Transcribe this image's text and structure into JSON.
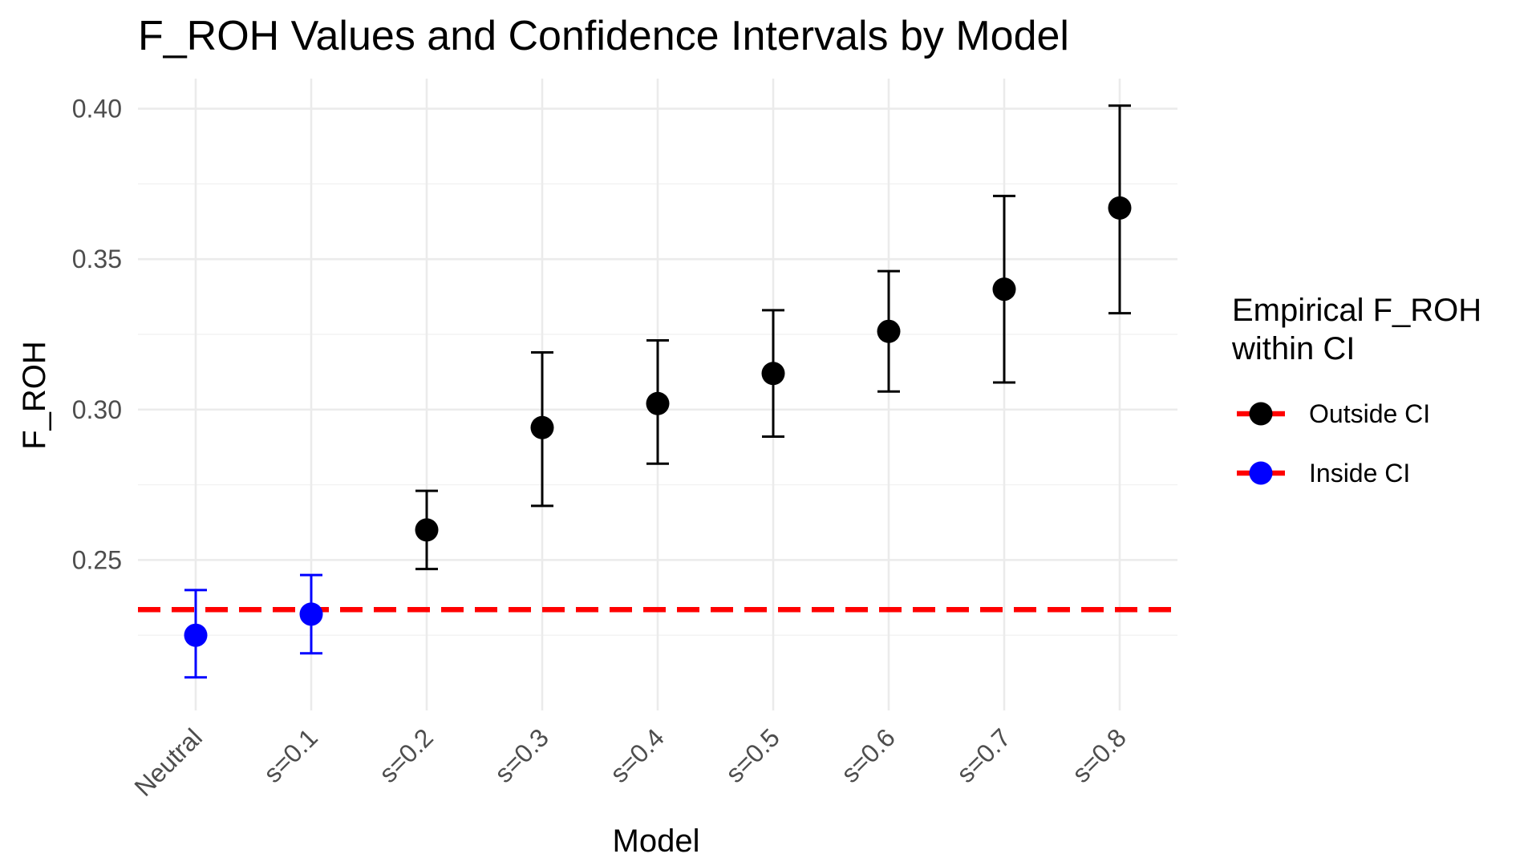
{
  "chart_data": {
    "type": "scatter",
    "title": "F_ROH Values and Confidence Intervals by Model",
    "xlabel": "Model",
    "ylabel": "F_ROH",
    "categories": [
      "Neutral",
      "s=0.1",
      "s=0.2",
      "s=0.3",
      "s=0.4",
      "s=0.5",
      "s=0.6",
      "s=0.7",
      "s=0.8"
    ],
    "values": [
      0.225,
      0.232,
      0.26,
      0.294,
      0.302,
      0.312,
      0.326,
      0.34,
      0.367
    ],
    "ci_lower": [
      0.211,
      0.219,
      0.247,
      0.268,
      0.282,
      0.291,
      0.306,
      0.309,
      0.332
    ],
    "ci_upper": [
      0.24,
      0.245,
      0.273,
      0.319,
      0.323,
      0.333,
      0.346,
      0.371,
      0.401
    ],
    "group": [
      "Inside CI",
      "Inside CI",
      "Outside CI",
      "Outside CI",
      "Outside CI",
      "Outside CI",
      "Outside CI",
      "Outside CI",
      "Outside CI"
    ],
    "reference_line": {
      "value": 0.2335,
      "color": "#ff0000",
      "style": "dashed"
    },
    "ylim": [
      0.2,
      0.41
    ],
    "yticks": [
      0.25,
      0.3,
      0.35,
      0.4
    ],
    "ytick_labels": [
      "0.25",
      "0.30",
      "0.35",
      "0.40"
    ],
    "grid": true,
    "legend": {
      "title_lines": [
        "Empirical F_ROH",
        "within CI"
      ],
      "placement": "right",
      "entries": [
        {
          "label": "Outside CI",
          "point_color": "#000000",
          "line_color": "#ff0000"
        },
        {
          "label": "Inside CI",
          "point_color": "#0000ff",
          "line_color": "#ff0000"
        }
      ]
    },
    "colors": {
      "Outside CI": "#000000",
      "Inside CI": "#0000ff"
    }
  }
}
